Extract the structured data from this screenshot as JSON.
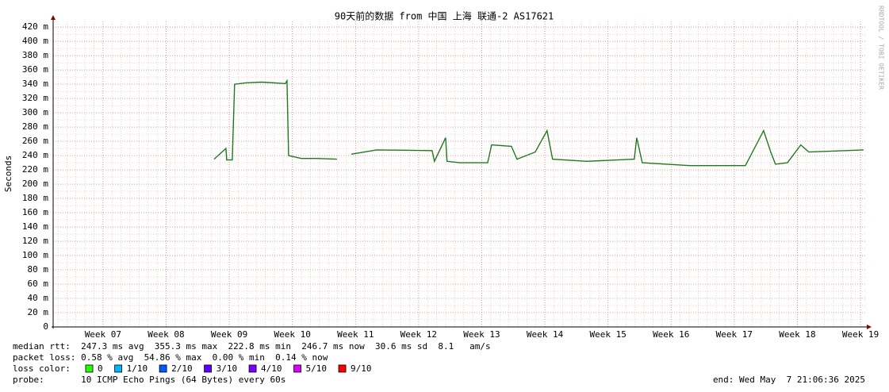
{
  "chart_data": {
    "type": "line",
    "title": "90天前的数据 from 中国 上海 联通-2 AS17621",
    "y_label": "Seconds",
    "side_text": "RRDTOOL / TOBI OETIKER",
    "x": [
      8.759,
      8.947,
      8.96,
      9.048,
      9.085,
      9.261,
      9.513,
      9.889,
      9.915,
      9.94,
      10.141,
      10.392,
      10.706,
      null,
      10.932,
      11.334,
      12.214,
      12.251,
      12.427,
      12.45,
      12.653,
      13.093,
      13.156,
      13.47,
      13.558,
      13.847,
      14.035,
      14.123,
      14.663,
      15.417,
      15.455,
      15.543,
      16.296,
      17.176,
      17.465,
      17.578,
      17.653,
      17.842,
      18.055,
      18.181,
      19.048
    ],
    "values": [
      0.235,
      0.25,
      0.234,
      0.234,
      0.34,
      0.342,
      0.343,
      0.341,
      0.345,
      0.24,
      0.236,
      0.236,
      0.235,
      null,
      0.242,
      0.248,
      0.247,
      0.232,
      0.265,
      0.232,
      0.23,
      0.23,
      0.255,
      0.253,
      0.235,
      0.245,
      0.275,
      0.235,
      0.232,
      0.235,
      0.265,
      0.23,
      0.226,
      0.226,
      0.275,
      0.245,
      0.228,
      0.23,
      0.255,
      0.245,
      0.248
    ],
    "color": "#1f7a1f",
    "xlim": [
      6.21,
      19.1
    ],
    "ylim": [
      0,
      0.428
    ],
    "xticks": [
      {
        "value": 7,
        "label": "Week 07"
      },
      {
        "value": 8,
        "label": "Week 08"
      },
      {
        "value": 9,
        "label": "Week 09"
      },
      {
        "value": 10,
        "label": "Week 10"
      },
      {
        "value": 11,
        "label": "Week 11"
      },
      {
        "value": 12,
        "label": "Week 12"
      },
      {
        "value": 13,
        "label": "Week 13"
      },
      {
        "value": 14,
        "label": "Week 14"
      },
      {
        "value": 15,
        "label": "Week 15"
      },
      {
        "value": 16,
        "label": "Week 16"
      },
      {
        "value": 17,
        "label": "Week 17"
      },
      {
        "value": 18,
        "label": "Week 18"
      },
      {
        "value": 19,
        "label": "Week 19"
      }
    ],
    "yticks": [
      0,
      {
        "value": 0.02,
        "label": "20 m"
      },
      {
        "value": 0.04,
        "label": "40 m"
      },
      {
        "value": 0.06,
        "label": "60 m"
      },
      {
        "value": 0.08,
        "label": "80 m"
      },
      {
        "value": 0.1,
        "label": "100 m"
      },
      {
        "value": 0.12,
        "label": "120 m"
      },
      {
        "value": 0.14,
        "label": "140 m"
      },
      {
        "value": 0.16,
        "label": "160 m"
      },
      {
        "value": 0.18,
        "label": "180 m"
      },
      {
        "value": 0.2,
        "label": "200 m"
      },
      {
        "value": 0.22,
        "label": "220 m"
      },
      {
        "value": 0.24,
        "label": "240 m"
      },
      {
        "value": 0.26,
        "label": "260 m"
      },
      {
        "value": 0.28,
        "label": "280 m"
      },
      {
        "value": 0.3,
        "label": "300 m"
      },
      {
        "value": 0.32,
        "label": "320 m"
      },
      {
        "value": 0.34,
        "label": "340 m"
      },
      {
        "value": 0.36,
        "label": "360 m"
      },
      {
        "value": 0.38,
        "label": "380 m"
      },
      {
        "value": 0.4,
        "label": "400 m"
      },
      {
        "value": 0.42,
        "label": "420 m"
      }
    ],
    "grid": true,
    "footer": [
      "median rtt:  247.3 ms avg  355.3 ms max  222.8 ms min  246.7 ms now  30.6 ms sd  8.1   am/s",
      "packet loss: 0.58 % avg  54.86 % max  0.00 % min  0.14 % now"
    ],
    "loss_title": "loss color:",
    "loss_legend": [
      {
        "label": "0",
        "color": "#26ff00"
      },
      {
        "label": "1/10",
        "color": "#00b8ff"
      },
      {
        "label": "2/10",
        "color": "#0059ff"
      },
      {
        "label": "3/10",
        "color": "#5e00ff"
      },
      {
        "label": "4/10",
        "color": "#7e00ff"
      },
      {
        "label": "5/10",
        "color": "#dd00ff"
      },
      {
        "label": "9/10",
        "color": "#ff0000"
      }
    ],
    "probe": "probe:       10 ICMP Echo Pings (64 Bytes) every 60s",
    "end": "end: Wed May  7 21:06:36 2025"
  }
}
